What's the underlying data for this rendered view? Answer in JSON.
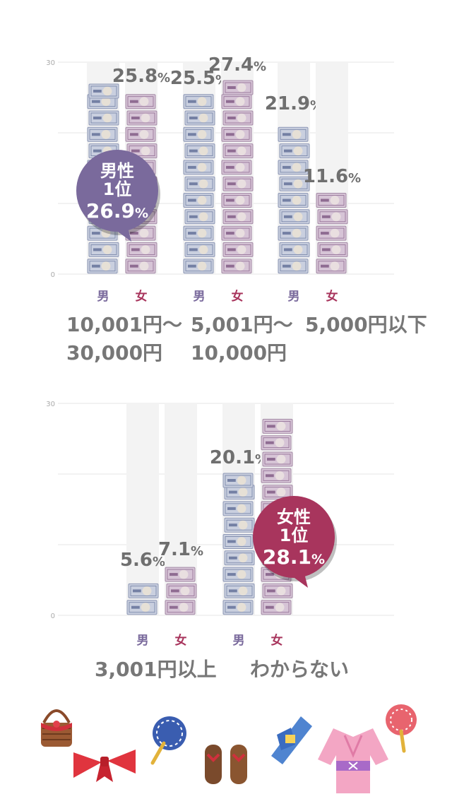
{
  "colors": {
    "male": "#7a6a9c",
    "female": "#a8355d",
    "value_text": "#6f6f6f",
    "bar_bg": "#f3f3f3",
    "grid": "#e6e6e6",
    "tick": "#aaaaaa"
  },
  "gender_labels": {
    "male": "男",
    "female": "女"
  },
  "chart_data": [
    {
      "type": "bar",
      "ylim": [
        0,
        30
      ],
      "yticks": [
        0,
        30
      ],
      "categories": [
        [
          "10,001円〜",
          "30,000円"
        ],
        [
          "5,001円〜",
          "10,000円"
        ],
        [
          "5,000円以下"
        ]
      ],
      "series": [
        {
          "name": "男",
          "values": [
            26.9,
            25.5,
            21.9
          ]
        },
        {
          "name": "女",
          "values": [
            25.8,
            27.4,
            11.6
          ]
        }
      ],
      "value_labels": [
        [
          "",
          "25.8"
        ],
        [
          "25.5",
          "27.4"
        ],
        [
          "21.9",
          "11.6"
        ]
      ],
      "callout": {
        "series": 0,
        "category": 0,
        "lines": [
          "男性",
          "1位",
          "26.9"
        ],
        "color": "#7a6a9c"
      }
    },
    {
      "type": "bar",
      "ylim": [
        0,
        30
      ],
      "yticks": [
        0,
        30
      ],
      "categories": [
        [
          "3,001円以上"
        ],
        [
          "わからない"
        ]
      ],
      "series": [
        {
          "name": "男",
          "values": [
            5.6,
            20.1
          ]
        },
        {
          "name": "女",
          "values": [
            7.1,
            28.1
          ]
        }
      ],
      "value_labels": [
        [
          "5.6",
          "7.1"
        ],
        [
          "20.1",
          ""
        ]
      ],
      "callout": {
        "series": 1,
        "category": 1,
        "lines": [
          "女性",
          "1位",
          "28.1"
        ],
        "color": "#a8355d"
      }
    }
  ],
  "percent_sign": "%",
  "decorations": [
    "basket-icon",
    "ribbon-icon",
    "fan-icon",
    "geta-icon",
    "obi-icon",
    "yukata-icon",
    "fan-icon"
  ]
}
